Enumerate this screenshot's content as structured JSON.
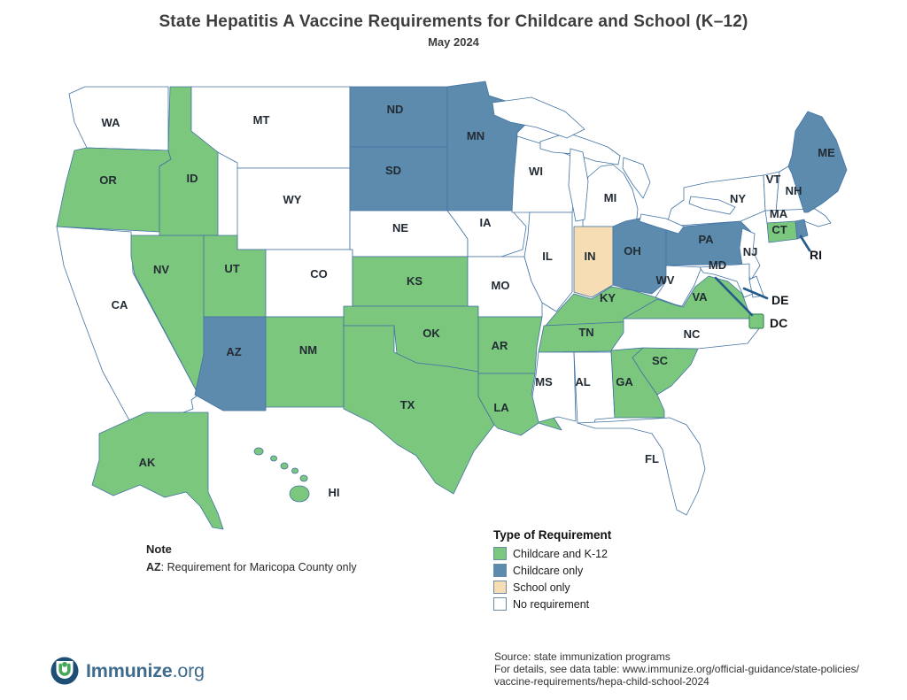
{
  "title": "State Hepatitis A Vaccine Requirements for Childcare and School (K–12)",
  "subtitle": "May 2024",
  "legend": {
    "title": "Type of Requirement",
    "items": [
      {
        "key": "childcare_k12",
        "label": "Childcare and K-12",
        "color": "#7cc77e"
      },
      {
        "key": "childcare_only",
        "label": "Childcare only",
        "color": "#5d8bad"
      },
      {
        "key": "school_only",
        "label": "School only",
        "color": "#f6ddb4"
      },
      {
        "key": "none",
        "label": "No requirement",
        "color": "#ffffff"
      }
    ]
  },
  "note": {
    "heading": "Note",
    "abbr": "AZ",
    "text": ": Requirement for Maricopa County only"
  },
  "source_lines": [
    "Source: state immunization programs",
    "For details, see data table: www.immunize.org/official-guidance/state-policies/",
    "vaccine-requirements/hepa-child-school-2024"
  ],
  "logo": {
    "text": "Immunize",
    "suffix": ".org"
  },
  "map": {
    "states": [
      {
        "abbr": "WA",
        "category": "none"
      },
      {
        "abbr": "OR",
        "category": "childcare_k12"
      },
      {
        "abbr": "CA",
        "category": "none"
      },
      {
        "abbr": "NV",
        "category": "childcare_k12"
      },
      {
        "abbr": "ID",
        "category": "childcare_k12"
      },
      {
        "abbr": "MT",
        "category": "none"
      },
      {
        "abbr": "WY",
        "category": "none"
      },
      {
        "abbr": "UT",
        "category": "childcare_k12"
      },
      {
        "abbr": "CO",
        "category": "none"
      },
      {
        "abbr": "AZ",
        "category": "childcare_only"
      },
      {
        "abbr": "NM",
        "category": "childcare_k12"
      },
      {
        "abbr": "ND",
        "category": "childcare_only"
      },
      {
        "abbr": "SD",
        "category": "childcare_only"
      },
      {
        "abbr": "NE",
        "category": "none"
      },
      {
        "abbr": "KS",
        "category": "childcare_k12"
      },
      {
        "abbr": "OK",
        "category": "childcare_k12"
      },
      {
        "abbr": "TX",
        "category": "childcare_k12"
      },
      {
        "abbr": "MN",
        "category": "childcare_only"
      },
      {
        "abbr": "IA",
        "category": "none"
      },
      {
        "abbr": "MO",
        "category": "none"
      },
      {
        "abbr": "AR",
        "category": "childcare_k12"
      },
      {
        "abbr": "LA",
        "category": "childcare_k12"
      },
      {
        "abbr": "WI",
        "category": "none"
      },
      {
        "abbr": "IL",
        "category": "none"
      },
      {
        "abbr": "MI",
        "category": "none"
      },
      {
        "abbr": "IN",
        "category": "school_only"
      },
      {
        "abbr": "OH",
        "category": "childcare_only"
      },
      {
        "abbr": "KY",
        "category": "childcare_k12"
      },
      {
        "abbr": "TN",
        "category": "childcare_k12"
      },
      {
        "abbr": "MS",
        "category": "none"
      },
      {
        "abbr": "AL",
        "category": "none"
      },
      {
        "abbr": "GA",
        "category": "childcare_k12"
      },
      {
        "abbr": "SC",
        "category": "childcare_k12"
      },
      {
        "abbr": "NC",
        "category": "none"
      },
      {
        "abbr": "VA",
        "category": "childcare_k12"
      },
      {
        "abbr": "WV",
        "category": "none"
      },
      {
        "abbr": "FL",
        "category": "none"
      },
      {
        "abbr": "PA",
        "category": "childcare_only"
      },
      {
        "abbr": "NY",
        "category": "none"
      },
      {
        "abbr": "NJ",
        "category": "none"
      },
      {
        "abbr": "MD",
        "category": "none"
      },
      {
        "abbr": "VT",
        "category": "none"
      },
      {
        "abbr": "NH",
        "category": "none"
      },
      {
        "abbr": "MA",
        "category": "none"
      },
      {
        "abbr": "CT",
        "category": "childcare_k12"
      },
      {
        "abbr": "ME",
        "category": "childcare_only"
      },
      {
        "abbr": "RI",
        "category": "childcare_only"
      },
      {
        "abbr": "DE",
        "category": "none"
      },
      {
        "abbr": "DC",
        "category": "childcare_k12"
      },
      {
        "abbr": "AK",
        "category": "childcare_k12"
      },
      {
        "abbr": "HI",
        "category": "childcare_k12"
      }
    ]
  }
}
